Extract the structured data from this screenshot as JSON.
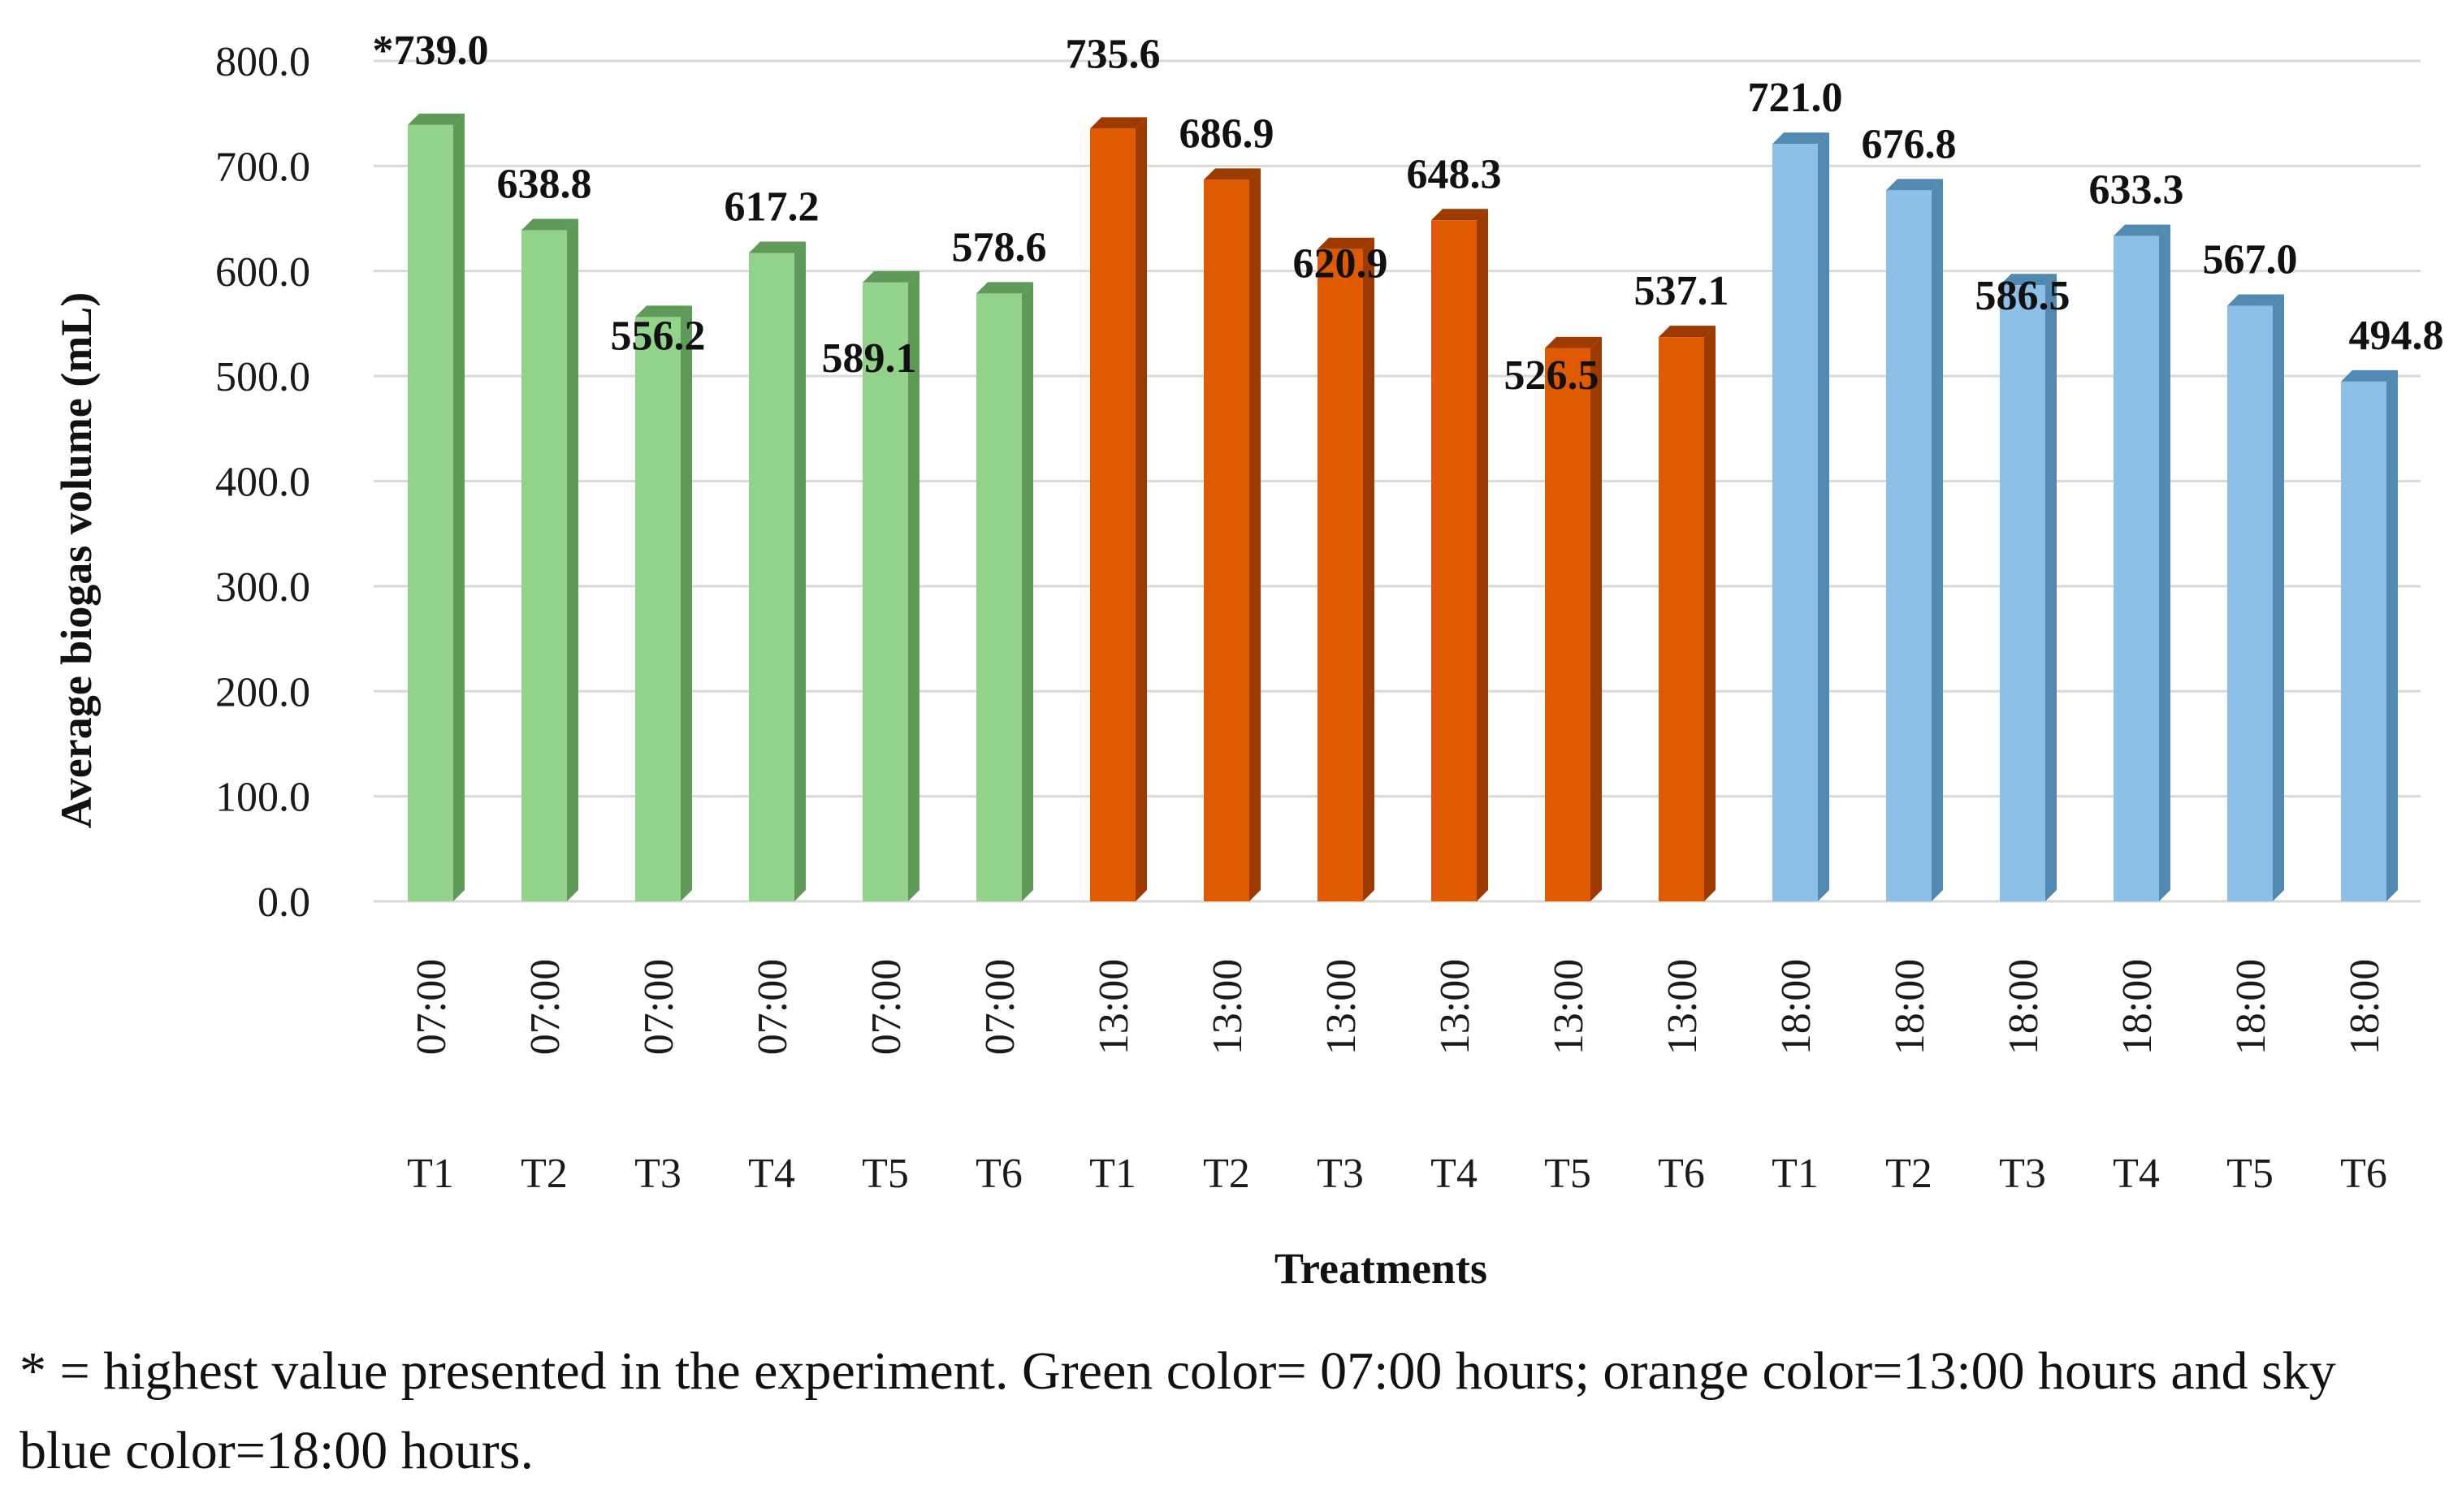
{
  "chart_data": {
    "type": "bar",
    "title": "",
    "xlabel": "Treatments",
    "ylabel": "Average biogas volume (mL)",
    "ylim": [
      0,
      800
    ],
    "yticks": [
      "0.0",
      "100.0",
      "200.0",
      "300.0",
      "400.0",
      "500.0",
      "600.0",
      "700.0",
      "800.0"
    ],
    "grid": true,
    "legend": "none",
    "categories": [
      {
        "time": "07:00",
        "treatment": "T1"
      },
      {
        "time": "07:00",
        "treatment": "T2"
      },
      {
        "time": "07:00",
        "treatment": "T3"
      },
      {
        "time": "07:00",
        "treatment": "T4"
      },
      {
        "time": "07:00",
        "treatment": "T5"
      },
      {
        "time": "07:00",
        "treatment": "T6"
      },
      {
        "time": "13:00",
        "treatment": "T1"
      },
      {
        "time": "13:00",
        "treatment": "T2"
      },
      {
        "time": "13:00",
        "treatment": "T3"
      },
      {
        "time": "13:00",
        "treatment": "T4"
      },
      {
        "time": "13:00",
        "treatment": "T5"
      },
      {
        "time": "13:00",
        "treatment": "T6"
      },
      {
        "time": "18:00",
        "treatment": "T1"
      },
      {
        "time": "18:00",
        "treatment": "T2"
      },
      {
        "time": "18:00",
        "treatment": "T3"
      },
      {
        "time": "18:00",
        "treatment": "T4"
      },
      {
        "time": "18:00",
        "treatment": "T5"
      },
      {
        "time": "18:00",
        "treatment": "T6"
      }
    ],
    "values": [
      739.0,
      638.8,
      556.2,
      617.2,
      589.1,
      578.6,
      735.6,
      686.9,
      620.9,
      648.3,
      526.5,
      537.1,
      721.0,
      676.8,
      586.5,
      633.3,
      567.0,
      494.8
    ],
    "data_labels": [
      "*739.0",
      "638.8",
      "556.2",
      "617.2",
      "589.1",
      "578.6",
      "735.6",
      "686.9",
      "620.9",
      "648.3",
      "526.5",
      "537.1",
      "721.0",
      "676.8",
      "586.5",
      "633.3",
      "567.0",
      "494.8"
    ],
    "groups": [
      {
        "time": "07:00",
        "color": "#92d28a",
        "dark": "#5f9a58"
      },
      {
        "time": "13:00",
        "color": "#e05a00",
        "dark": "#9c3a00"
      },
      {
        "time": "18:00",
        "color": "#8cc0e6",
        "dark": "#5289b0"
      }
    ]
  },
  "footnote": "* = highest value presented in the experiment. Green color= 07:00 hours; orange color=13:00 hours and sky blue color=18:00 hours."
}
